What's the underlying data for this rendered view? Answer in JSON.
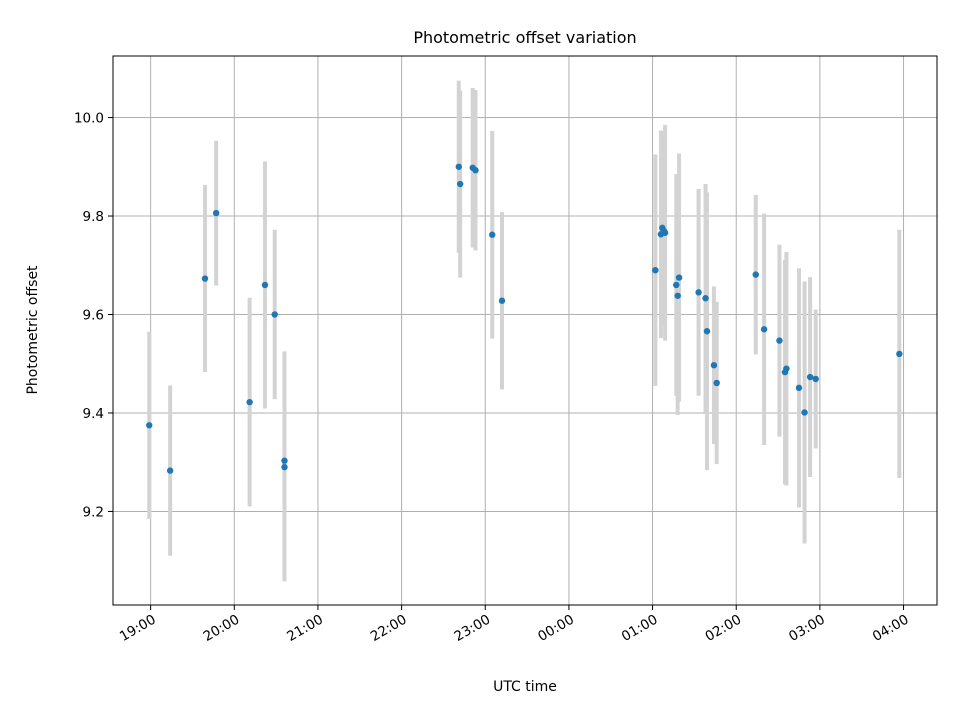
{
  "chart_data": {
    "type": "scatter",
    "title": "Photometric offset variation",
    "xlabel": "UTC time",
    "ylabel": "Photometric offset",
    "grid": true,
    "x_axis": {
      "kind": "time",
      "start": "18:33",
      "end": "04:24",
      "ticks": [
        "19:00",
        "20:00",
        "21:00",
        "22:00",
        "23:00",
        "00:00",
        "01:00",
        "02:00",
        "03:00",
        "04:00"
      ]
    },
    "ylim": [
      9.01,
      10.125
    ],
    "y_ticks": [
      "9.2",
      "9.4",
      "9.6",
      "9.8",
      "10.0"
    ],
    "colors": {
      "point": "#1f77b4",
      "errorbar": "#d3d3d3"
    },
    "points": [
      {
        "t": "18:59",
        "y": 9.375,
        "err": 0.19
      },
      {
        "t": "19:14",
        "y": 9.283,
        "err": 0.173
      },
      {
        "t": "19:39",
        "y": 9.673,
        "err": 0.19
      },
      {
        "t": "19:47",
        "y": 9.806,
        "err": 0.147
      },
      {
        "t": "20:11",
        "y": 9.422,
        "err": 0.212
      },
      {
        "t": "20:22",
        "y": 9.66,
        "err": 0.251
      },
      {
        "t": "20:29",
        "y": 9.6,
        "err": 0.172
      },
      {
        "t": "20:36",
        "y": 9.303,
        "err": 0.222
      },
      {
        "t": "20:36",
        "y": 9.29,
        "err": 0.232
      },
      {
        "t": "22:41",
        "y": 9.9,
        "err": 0.175
      },
      {
        "t": "22:42",
        "y": 9.865,
        "err": 0.19
      },
      {
        "t": "22:51",
        "y": 9.898,
        "err": 0.162
      },
      {
        "t": "22:53",
        "y": 9.893,
        "err": 0.163
      },
      {
        "t": "23:05",
        "y": 9.762,
        "err": 0.211
      },
      {
        "t": "23:12",
        "y": 9.628,
        "err": 0.18
      },
      {
        "t": "01:02",
        "y": 9.69,
        "err": 0.235
      },
      {
        "t": "01:06",
        "y": 9.763,
        "err": 0.211
      },
      {
        "t": "01:07",
        "y": 9.776,
        "err": 0.196
      },
      {
        "t": "01:08",
        "y": 9.77,
        "err": 0.192
      },
      {
        "t": "01:09",
        "y": 9.766,
        "err": 0.219
      },
      {
        "t": "01:17",
        "y": 9.66,
        "err": 0.225
      },
      {
        "t": "01:18",
        "y": 9.638,
        "err": 0.242
      },
      {
        "t": "01:19",
        "y": 9.675,
        "err": 0.252
      },
      {
        "t": "01:33",
        "y": 9.645,
        "err": 0.21
      },
      {
        "t": "01:38",
        "y": 9.633,
        "err": 0.232
      },
      {
        "t": "01:39",
        "y": 9.566,
        "err": 0.282
      },
      {
        "t": "01:44",
        "y": 9.497,
        "err": 0.16
      },
      {
        "t": "01:46",
        "y": 9.461,
        "err": 0.165
      },
      {
        "t": "02:14",
        "y": 9.681,
        "err": 0.162
      },
      {
        "t": "02:20",
        "y": 9.57,
        "err": 0.235
      },
      {
        "t": "02:31",
        "y": 9.547,
        "err": 0.195
      },
      {
        "t": "02:35",
        "y": 9.483,
        "err": 0.228
      },
      {
        "t": "02:36",
        "y": 9.49,
        "err": 0.237
      },
      {
        "t": "02:45",
        "y": 9.451,
        "err": 0.243
      },
      {
        "t": "02:49",
        "y": 9.401,
        "err": 0.266
      },
      {
        "t": "02:53",
        "y": 9.473,
        "err": 0.203
      },
      {
        "t": "02:57",
        "y": 9.469,
        "err": 0.141
      },
      {
        "t": "03:57",
        "y": 9.52,
        "err": 0.252
      }
    ]
  }
}
